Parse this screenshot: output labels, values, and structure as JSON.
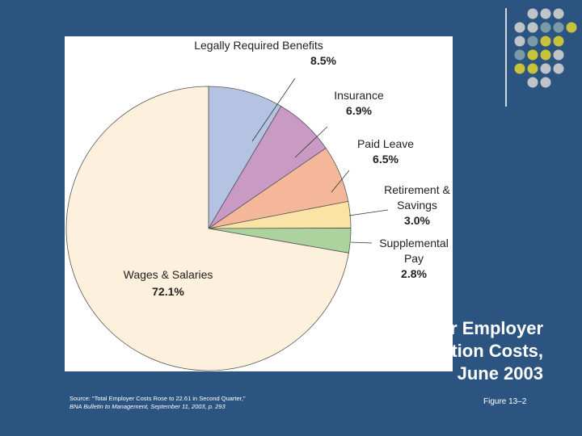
{
  "slide": {
    "title_lines": [
      "Private-Sector Employer",
      "Compensation Costs,",
      "June 2003"
    ],
    "source_line1": "Source: \"Total Employer Costs Rose to 22.61 in Second Quarter,\"",
    "source_line2": "BNA Bulletin to Management, September 11, 2003, p. 293",
    "figure_label": "Figure 13–2"
  },
  "colors": {
    "background": "#2b5580",
    "deco_gray": "#c0c4c8",
    "deco_teal": "#7a9aa8",
    "deco_yellow": "#c8c23a"
  },
  "chart_data": {
    "type": "pie",
    "title": "",
    "slices": [
      {
        "label": "Legally Required Benefits",
        "value": 8.5,
        "display": "8.5%",
        "color": "#b5c3e3"
      },
      {
        "label": "Insurance",
        "value": 6.9,
        "display": "6.9%",
        "color": "#c99ac4"
      },
      {
        "label": "Paid Leave",
        "value": 6.5,
        "display": "6.5%",
        "color": "#f4b79a"
      },
      {
        "label": "Retirement & Savings",
        "value": 3.0,
        "display": "3.0%",
        "color": "#fbe3a6"
      },
      {
        "label": "Supplemental Pay",
        "value": 2.8,
        "display": "2.8%",
        "color": "#acd39e"
      },
      {
        "label": "Wages & Salaries",
        "value": 72.1,
        "display": "72.1%",
        "color": "#fdf0dc"
      }
    ]
  }
}
